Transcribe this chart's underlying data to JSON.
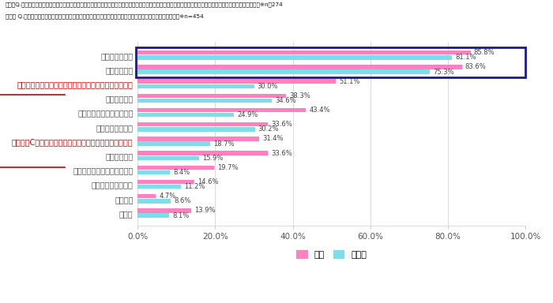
{
  "title_line1": "母親　Q.受験生のお子様の「風邪、インフルエンザ」予防としてどのような対策をしていましたか？促したり、やってあげたことをお答えください。（複数回答）※n＝274",
  "title_line2": "受験生 Q.受験期に「風邪、インフルエンザ」予防としてどのような対策をしていましたか？　（複数回答）　※n=454",
  "categories": [
    "手洗い・うがい",
    "マスクの装着",
    "乳酸菌（ヨーグルト、飲料、サプリメントなど）の摂取",
    "手・指の除菌",
    "加湿器・空気清浄器の使用",
    "積極的な水分補給",
    "ビタミンC（フルーツ、飲料、サプリメントなど）の摂取",
    "お部屋の除菌",
    "キッチン、食卓まわりの除菌",
    "栄養ドリンクの摂取",
    "鼻うがい",
    "その他"
  ],
  "haha_values": [
    85.8,
    83.6,
    51.1,
    38.3,
    43.4,
    33.6,
    31.4,
    33.6,
    19.7,
    14.6,
    4.7,
    13.9
  ],
  "juken_values": [
    81.1,
    75.3,
    30.0,
    34.6,
    24.9,
    30.2,
    18.7,
    15.9,
    8.4,
    11.2,
    8.6,
    8.1
  ],
  "haha_color": "#FF80C0",
  "juken_color": "#7DDDE8",
  "box_outline_color": "#1a1a8c",
  "underline_color": "#CC0000",
  "background_color": "#FFFFFF",
  "xlim": [
    0,
    100
  ],
  "xticks": [
    0,
    20,
    40,
    60,
    80,
    100
  ],
  "xticklabels": [
    "0.0%",
    "20.0%",
    "40.0%",
    "60.0%",
    "80.0%",
    "100.0%"
  ],
  "legend_haha": "母親",
  "legend_juken": "受験生",
  "boxed_indices": [
    0,
    1
  ],
  "underlined_indices": [
    2,
    6
  ]
}
